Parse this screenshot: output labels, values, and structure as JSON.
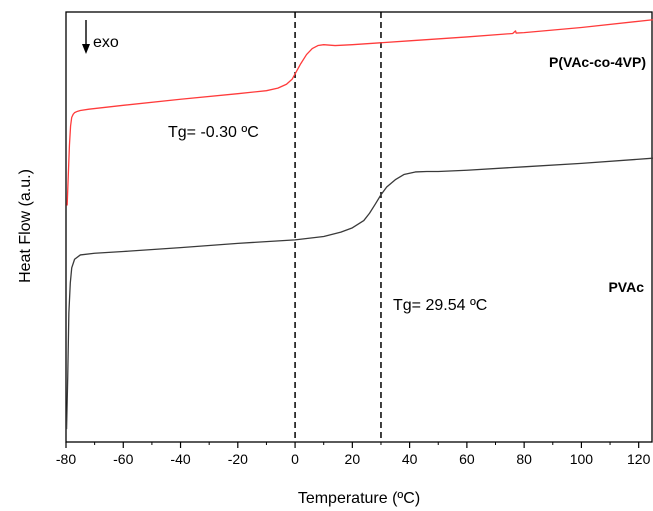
{
  "chart_data": {
    "type": "line",
    "xlabel": "Temperature (ºC)",
    "ylabel": "Heat Flow (a.u.)",
    "xlim": [
      -80,
      125
    ],
    "x_ticks": [
      -80,
      -60,
      -40,
      -20,
      0,
      20,
      40,
      60,
      80,
      100,
      120
    ],
    "y_ticks_shown": false,
    "ylim": [
      0,
      100
    ],
    "grid": false,
    "exo_label": "exo",
    "vlines": [
      0,
      30
    ],
    "series": [
      {
        "name": "P(VAc-co-4VP)",
        "color": "#ff3b3b",
        "x": [
          -79.6,
          -79.2,
          -78.8,
          -78.4,
          -78.0,
          -77.5,
          -77.0,
          -76.0,
          -75.0,
          -72.0,
          -60.0,
          -40.0,
          -20.0,
          -10.0,
          -6.0,
          -3.0,
          -1.0,
          0.0,
          2.0,
          4.0,
          6.0,
          8.0,
          10.0,
          14.0,
          20.0,
          40.0,
          60.0,
          76.0,
          77.0,
          77.2,
          80.0,
          100.0,
          125.0
        ],
        "y": [
          55.0,
          62.0,
          69.0,
          73.5,
          75.5,
          76.2,
          76.6,
          76.9,
          77.1,
          77.4,
          78.3,
          79.7,
          81.0,
          81.7,
          82.3,
          83.2,
          84.4,
          85.6,
          88.0,
          90.1,
          91.5,
          92.2,
          92.4,
          92.2,
          92.4,
          93.3,
          94.2,
          95.0,
          95.6,
          95.1,
          95.2,
          96.4,
          98.2
        ]
      },
      {
        "name": "PVAc",
        "color": "#3a3a3a",
        "x": [
          -79.8,
          -79.4,
          -79.0,
          -78.5,
          -78.0,
          -77.0,
          -75.0,
          -70.0,
          -60.0,
          -40.0,
          -20.0,
          0.0,
          10.0,
          16.0,
          20.0,
          24.0,
          26.0,
          28.0,
          30.0,
          32.0,
          35.0,
          38.0,
          42.0,
          46.0,
          50.0,
          60.0,
          80.0,
          100.0,
          125.0
        ],
        "y": [
          3.0,
          15.0,
          30.0,
          37.0,
          40.5,
          42.5,
          43.5,
          43.9,
          44.3,
          45.2,
          46.2,
          47.0,
          47.8,
          48.8,
          49.8,
          51.5,
          53.2,
          55.3,
          57.5,
          59.3,
          61.0,
          62.2,
          62.8,
          62.9,
          62.9,
          63.2,
          64.0,
          64.8,
          66.0
        ]
      }
    ],
    "annotations": [
      {
        "text": "Tg= -0.30 ºC"
      },
      {
        "text": "Tg= 29.54 ºC"
      }
    ]
  }
}
